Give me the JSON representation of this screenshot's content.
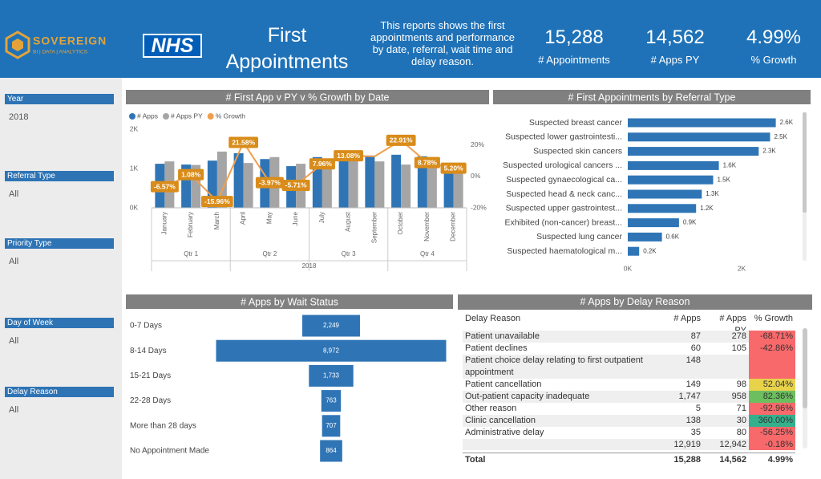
{
  "header": {
    "logo": {
      "name": "SOVEREIGN",
      "tagline": "BI | DATA | ANALYTICS"
    },
    "nhs": "NHS",
    "title": "First Appointments",
    "description": "This reports shows the first appointments and performance by date, referral, wait time and delay reason.",
    "kpis": [
      {
        "value": "15,288",
        "label": "# Appointments"
      },
      {
        "value": "14,562",
        "label": "# Apps PY"
      },
      {
        "value": "4.99%",
        "label": "% Growth"
      }
    ]
  },
  "filters": [
    {
      "label": "Year",
      "value": "2018"
    },
    {
      "label": "Referral Type",
      "value": "All"
    },
    {
      "label": "Priority Type",
      "value": "All"
    },
    {
      "label": "Day of Week",
      "value": "All"
    },
    {
      "label": "Delay Reason",
      "value": "All"
    }
  ],
  "chart_data": [
    {
      "type": "combo",
      "title": "# First App v PY v % Growth by Date",
      "categories": [
        "January",
        "February",
        "March",
        "April",
        "May",
        "June",
        "July",
        "August",
        "September",
        "October",
        "November",
        "December"
      ],
      "quarters": [
        "Qtr 1",
        "Qtr 2",
        "Qtr 3",
        "Qtr 4"
      ],
      "year": "2018",
      "series": [
        {
          "name": "# Apps",
          "color": "#2f75b6",
          "values": [
            1120,
            1100,
            1200,
            1390,
            1240,
            1060,
            1290,
            1450,
            1330,
            1350,
            1310,
            1000
          ]
        },
        {
          "name": "# Apps PY",
          "color": "#a5a5a5",
          "values": [
            1180,
            1090,
            1430,
            1140,
            1290,
            1120,
            1195,
            1280,
            1180,
            1100,
            1200,
            950
          ]
        },
        {
          "name": "% Growth",
          "color": "#ef9f4f",
          "axis": "y2",
          "values": [
            -6.57,
            1.08,
            -15.96,
            21.58,
            -3.97,
            -5.71,
            7.96,
            13.08,
            12.7,
            22.91,
            8.78,
            5.2
          ],
          "value_labels": [
            "-6.57%",
            "1.08%",
            "-15.96%",
            "21.58%",
            "-3.97%",
            "-5.71%",
            "7.96%",
            "13.08%",
            null,
            "22.91%",
            "8.78%",
            "5.20%"
          ]
        }
      ],
      "ylim": [
        0,
        2000
      ],
      "yticks": [
        {
          "value": 0,
          "label": "0K"
        },
        {
          "value": 1000,
          "label": "1K"
        },
        {
          "value": 2000,
          "label": "2K"
        }
      ],
      "y2lim": [
        -20,
        30
      ],
      "y2ticks": [
        {
          "value": -20,
          "label": "-20%"
        },
        {
          "value": 0,
          "label": "0%"
        },
        {
          "value": 20,
          "label": "20%"
        }
      ]
    },
    {
      "type": "hbar",
      "title": "# First Appointments by Referral Type",
      "color": "#2f75b6",
      "categories": [
        "Suspected breast cancer",
        "Suspected lower gastrointesti...",
        "Suspected skin cancers",
        "Suspected urological cancers ...",
        "Suspected gynaecological ca...",
        "Suspected head & neck canc...",
        "Suspected upper gastrointest...",
        "Exhibited (non-cancer) breast...",
        "Suspected lung cancer",
        "Suspected haematological m..."
      ],
      "values": [
        2600,
        2500,
        2300,
        1600,
        1500,
        1300,
        1200,
        900,
        600,
        200
      ],
      "value_labels": [
        "2.6K",
        "2.5K",
        "2.3K",
        "1.6K",
        "1.5K",
        "1.3K",
        "1.2K",
        "0.9K",
        "0.6K",
        "0.2K"
      ],
      "xlim": [
        0,
        3000
      ],
      "xticks": [
        {
          "value": 0,
          "label": "0K"
        },
        {
          "value": 2000,
          "label": "2K"
        }
      ]
    },
    {
      "type": "funnel",
      "title": "# Apps by Wait Status",
      "color": "#2f75b6",
      "categories": [
        "0-7 Days",
        "8-14 Days",
        "15-21 Days",
        "22-28 Days",
        "More than 28 days",
        "No Appointment Made"
      ],
      "values": [
        2249,
        8972,
        1733,
        763,
        707,
        864
      ],
      "value_labels": [
        "2,249",
        "8,972",
        "1,733",
        "763",
        "707",
        "864"
      ]
    }
  ],
  "table": {
    "title": "# Apps by Delay Reason",
    "columns": [
      "Delay Reason",
      "# Apps",
      "# Apps PY",
      "% Growth"
    ],
    "rows": [
      [
        "Patient unavailable",
        "87",
        "278",
        "-68.71%"
      ],
      [
        "Patient declines",
        "60",
        "105",
        "-42.86%"
      ],
      [
        "Patient choice delay relating to first outpatient appointment",
        "148",
        null,
        null
      ],
      [
        "Patient cancellation",
        "149",
        "98",
        "52.04%"
      ],
      [
        "Out-patient capacity inadequate",
        "1,747",
        "958",
        "82.36%"
      ],
      [
        "Other reason",
        "5",
        "71",
        "-92.96%"
      ],
      [
        "Clinic cancellation",
        "138",
        "30",
        "360.00%"
      ],
      [
        "Administrative delay",
        "35",
        "80",
        "-56.25%"
      ],
      [
        null,
        "12,919",
        "12,942",
        "-0.18%"
      ]
    ],
    "growth_colors": [
      "#f8696b",
      "#f8696b",
      "#f8696b",
      "#e8d24a",
      "#6cbf5f",
      "#f8696b",
      "#34b08c",
      "#f8696b",
      "#f8696b"
    ],
    "total": [
      "Total",
      "15,288",
      "14,562",
      "4.99%"
    ]
  }
}
